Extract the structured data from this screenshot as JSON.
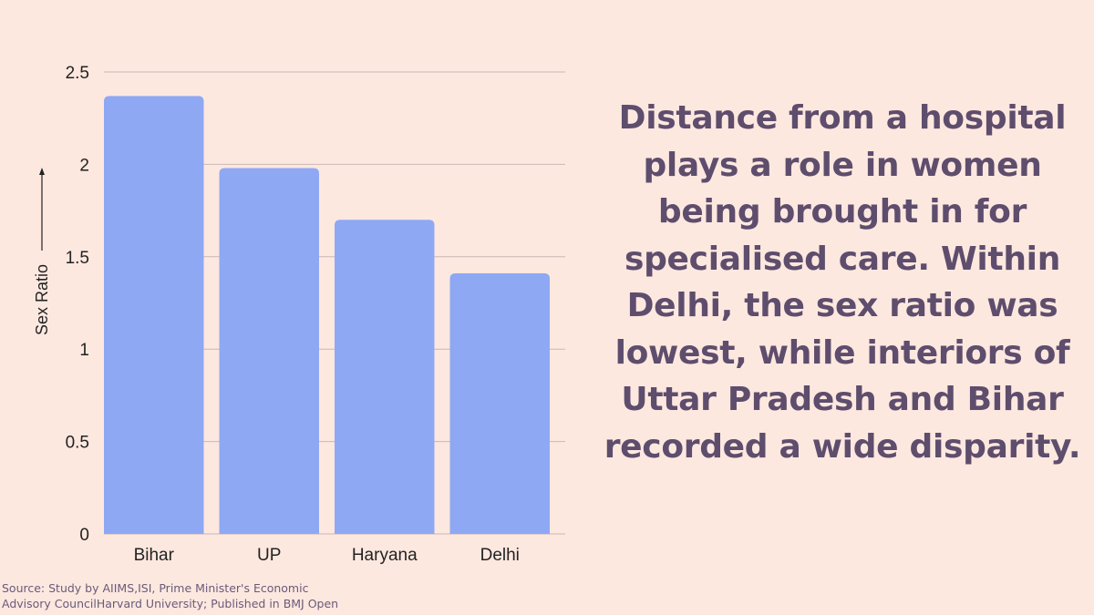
{
  "chart_data": {
    "type": "bar",
    "categories": [
      "Bihar",
      "UP",
      "Haryana",
      "Delhi"
    ],
    "values": [
      2.37,
      1.98,
      1.7,
      1.41
    ],
    "ylabel": "Sex Ratio",
    "ylim": [
      0,
      2.5
    ],
    "yticks": [
      0,
      0.5,
      1,
      1.5,
      2,
      2.5
    ],
    "ytick_labels": [
      "0",
      "0.5",
      "1",
      "1.5",
      "2",
      "2.5"
    ],
    "grid": true,
    "bar_color": "#8ea8f4",
    "grid_color": "#c9b8b4"
  },
  "headline": "Distance from a hospital plays a role in women being brought in for specialised care. Within Delhi, the sex ratio was lowest, while interiors of Uttar Pradesh and Bihar recorded a wide disparity.",
  "source": {
    "line1": "Source: Study by AIIMS,ISI, Prime Minister's Economic",
    "line2": "Advisory CouncilHarvard University; Published in BMJ Open"
  },
  "colors": {
    "background": "#fde8e0",
    "headline_text": "#5e4d6c",
    "source_text": "#6a5a78"
  }
}
